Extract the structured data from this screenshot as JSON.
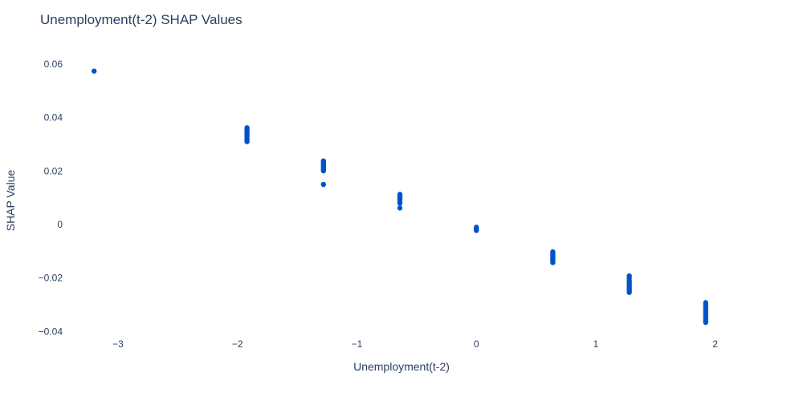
{
  "chart_data": {
    "type": "scatter",
    "title": "Unemployment(t-2) SHAP Values",
    "xlabel": "Unemployment(t-2)",
    "ylabel": "SHAP Value",
    "xlim": [
      -3.45,
      2.6
    ],
    "ylim": [
      -0.042,
      0.066
    ],
    "grid": false,
    "marker_color": "#0052cc",
    "x_ticks": [
      {
        "value": -3,
        "label": "−3"
      },
      {
        "value": -2,
        "label": "−2"
      },
      {
        "value": -1,
        "label": "−1"
      },
      {
        "value": 0,
        "label": "0"
      },
      {
        "value": 1,
        "label": "1"
      },
      {
        "value": 2,
        "label": "2"
      }
    ],
    "y_ticks": [
      {
        "value": 0.06,
        "label": "0.06"
      },
      {
        "value": 0.04,
        "label": "0.04"
      },
      {
        "value": 0.02,
        "label": "0.02"
      },
      {
        "value": 0,
        "label": "0"
      },
      {
        "value": -0.02,
        "label": "−0.02"
      },
      {
        "value": -0.04,
        "label": "−0.04"
      }
    ],
    "series": [
      {
        "x": [
          -3.2,
          -1.92,
          -1.92,
          -1.92,
          -1.92,
          -1.92,
          -1.92,
          -1.92,
          -1.92,
          -1.92,
          -1.28,
          -1.28,
          -1.28,
          -1.28,
          -1.28,
          -1.28,
          -1.28,
          -1.28,
          -1.28,
          -0.64,
          -0.64,
          -0.64,
          -0.64,
          -0.64,
          -0.64,
          -0.64,
          0.0,
          0.0,
          0.0,
          0.0,
          0.0,
          0.64,
          0.64,
          0.64,
          0.64,
          0.64,
          0.64,
          0.64,
          0.64,
          1.28,
          1.28,
          1.28,
          1.28,
          1.28,
          1.28,
          1.28,
          1.28,
          1.28,
          1.28,
          1.28,
          1.92,
          1.92,
          1.92,
          1.92,
          1.92,
          1.92,
          1.92,
          1.92,
          1.92,
          1.92,
          1.92,
          1.92
        ],
        "y": [
          0.0574,
          0.0362,
          0.0355,
          0.0348,
          0.0342,
          0.0336,
          0.033,
          0.0323,
          0.0316,
          0.031,
          0.0238,
          0.0233,
          0.0228,
          0.0222,
          0.0216,
          0.0211,
          0.0206,
          0.0201,
          0.015,
          0.0113,
          0.0106,
          0.0099,
          0.0093,
          0.0086,
          0.008,
          0.0062,
          -0.001,
          -0.0013,
          -0.0016,
          -0.0019,
          -0.0022,
          -0.0102,
          -0.0108,
          -0.0114,
          -0.012,
          -0.0126,
          -0.0132,
          -0.0137,
          -0.0142,
          -0.0192,
          -0.02,
          -0.0208,
          -0.0215,
          -0.0222,
          -0.0228,
          -0.0234,
          -0.0239,
          -0.0244,
          -0.0249,
          -0.0254,
          -0.0292,
          -0.0299,
          -0.0306,
          -0.0313,
          -0.032,
          -0.0327,
          -0.0334,
          -0.0341,
          -0.0348,
          -0.0354,
          -0.036,
          -0.0366
        ]
      }
    ]
  }
}
